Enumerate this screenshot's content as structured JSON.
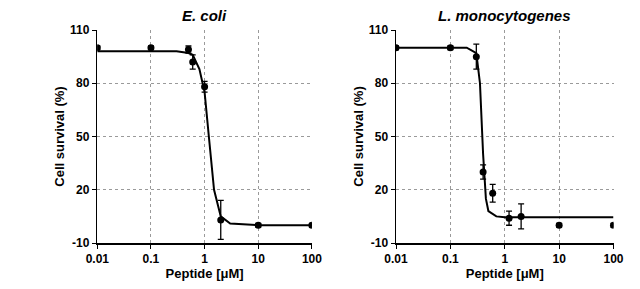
{
  "chart_data": [
    {
      "type": "scatter",
      "title": "E. coli",
      "x_label": "Peptide [μM]",
      "y_label": "Cell survival (%)",
      "log": "x",
      "grid": true,
      "xlim": [
        0.01,
        100
      ],
      "xticks": [
        0.01,
        0.1,
        1,
        10,
        100
      ],
      "ylim": [
        -10,
        110
      ],
      "yticks": [
        -10,
        20,
        50,
        80,
        110
      ],
      "series": [
        {
          "type": "scatter",
          "marker": "circle",
          "color": "#000000",
          "x": [
            0.01,
            0.1,
            0.5,
            0.6,
            1,
            2,
            10,
            100
          ],
          "values": [
            100,
            100,
            99,
            92,
            78,
            3,
            0,
            0
          ],
          "errors": [
            1,
            1,
            2,
            4,
            3,
            11,
            1,
            1
          ]
        },
        {
          "type": "line",
          "line_style": "solid",
          "color": "#000000",
          "x": [
            0.01,
            0.1,
            0.3,
            0.5,
            0.6,
            0.8,
            1,
            1.2,
            1.5,
            2,
            3,
            10,
            100
          ],
          "values": [
            98,
            98,
            98,
            97,
            96,
            88,
            75,
            50,
            20,
            5,
            1,
            0,
            0
          ]
        }
      ]
    },
    {
      "type": "scatter",
      "title": "L. monocytogenes",
      "x_label": "Peptide [μM]",
      "y_label": "Cell survival (%)",
      "log": "x",
      "grid": true,
      "xlim": [
        0.01,
        100
      ],
      "xticks": [
        0.01,
        0.1,
        1,
        10,
        100
      ],
      "ylim": [
        -10,
        110
      ],
      "yticks": [
        -10,
        20,
        50,
        80,
        110
      ],
      "series": [
        {
          "type": "scatter",
          "marker": "circle",
          "color": "#000000",
          "x": [
            0.01,
            0.1,
            0.3,
            0.4,
            0.6,
            1.2,
            2,
            10,
            100
          ],
          "values": [
            100,
            100,
            95,
            30,
            18,
            4,
            5,
            0,
            0
          ],
          "errors": [
            1,
            1,
            7,
            4,
            5,
            4,
            7,
            1,
            1
          ]
        },
        {
          "type": "line",
          "line_style": "solid",
          "color": "#000000",
          "x": [
            0.01,
            0.1,
            0.2,
            0.3,
            0.35,
            0.4,
            0.45,
            0.5,
            0.7,
            1,
            10,
            100
          ],
          "values": [
            100,
            100,
            100,
            97,
            80,
            40,
            15,
            8,
            5,
            4.5,
            4.5,
            4.5
          ]
        }
      ]
    }
  ]
}
